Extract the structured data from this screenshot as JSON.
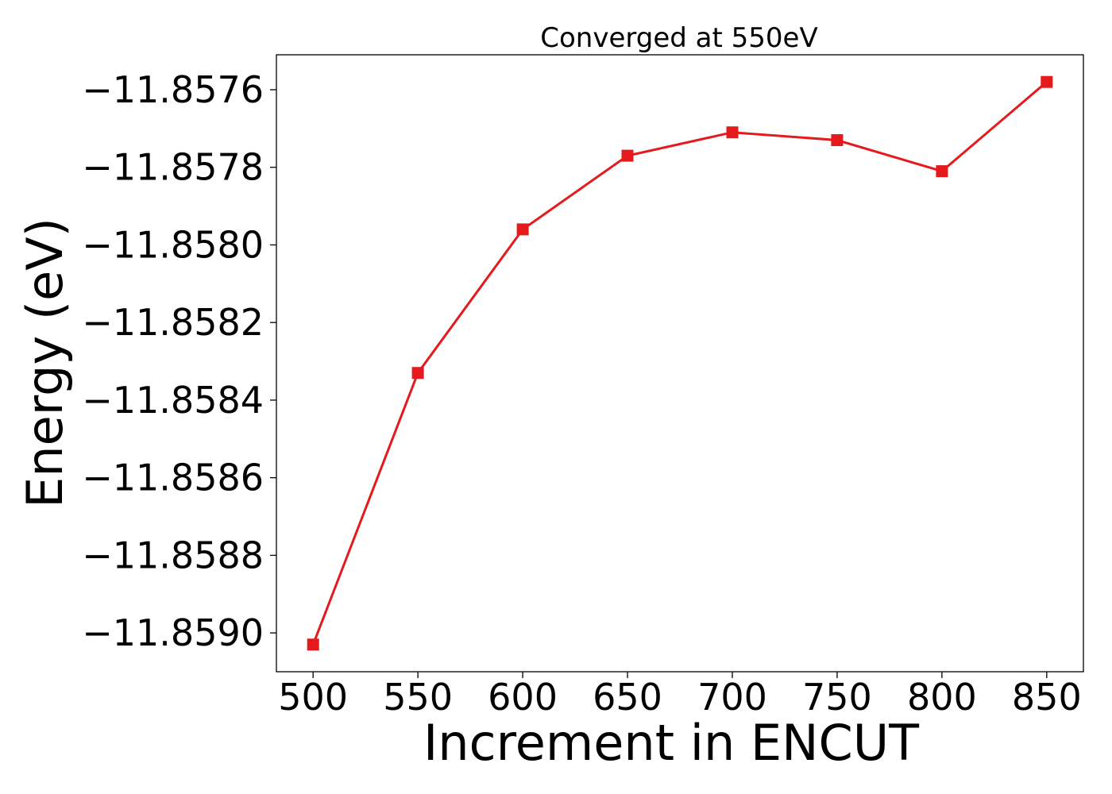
{
  "chart_data": {
    "type": "line",
    "title": "Converged at 550eV",
    "xlabel": "Increment in ENCUT",
    "ylabel": "Energy (eV)",
    "x": [
      500,
      550,
      600,
      650,
      700,
      750,
      800,
      850
    ],
    "series": [
      {
        "values": [
          -11.85903,
          -11.85833,
          -11.85796,
          -11.85777,
          -11.85771,
          -11.85773,
          -11.85781,
          -11.85758
        ],
        "color": "#e41a1c",
        "marker": "square"
      }
    ],
    "xticks": [
      500,
      550,
      600,
      650,
      700,
      750,
      800,
      850
    ],
    "xtick_labels": [
      "500",
      "550",
      "600",
      "650",
      "700",
      "750",
      "800",
      "850"
    ],
    "yticks": [
      -11.8576,
      -11.8578,
      -11.858,
      -11.8582,
      -11.8584,
      -11.8586,
      -11.8588,
      -11.859
    ],
    "ytick_labels": [
      "−11.8576",
      "−11.8578",
      "−11.8580",
      "−11.8582",
      "−11.8584",
      "−11.8586",
      "−11.8588",
      "−11.8590"
    ],
    "xlim": [
      482.5,
      867.5
    ],
    "ylim": [
      -11.8591,
      -11.85751
    ],
    "grid": false,
    "legend": "none"
  }
}
